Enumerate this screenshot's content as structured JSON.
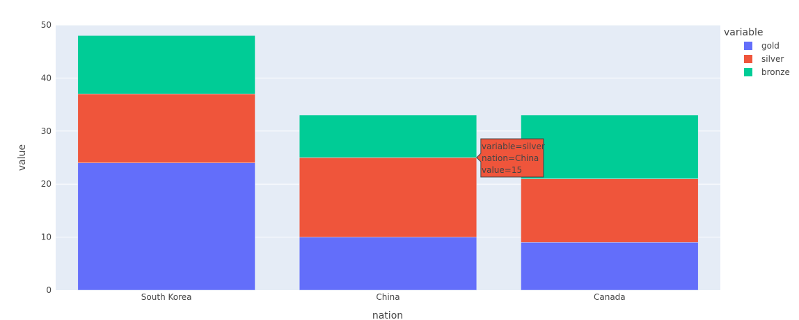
{
  "chart_data": {
    "type": "bar",
    "barmode": "stack",
    "categories": [
      "South Korea",
      "China",
      "Canada"
    ],
    "series": [
      {
        "name": "gold",
        "color": "#636efa",
        "values": [
          24,
          10,
          9
        ]
      },
      {
        "name": "silver",
        "color": "#EF553B",
        "values": [
          13,
          15,
          12
        ]
      },
      {
        "name": "bronze",
        "color": "#00cc96",
        "values": [
          11,
          8,
          12
        ]
      }
    ],
    "xlabel": "nation",
    "ylabel": "value",
    "ylim": [
      0,
      50
    ],
    "yticks": [
      0,
      10,
      20,
      30,
      40,
      50
    ],
    "grid": true,
    "legend": {
      "title": "variable",
      "placement": "right"
    },
    "hover": {
      "series": "silver",
      "category": "China",
      "lines": [
        "variable=silver",
        "nation=China",
        "value=15"
      ]
    }
  }
}
